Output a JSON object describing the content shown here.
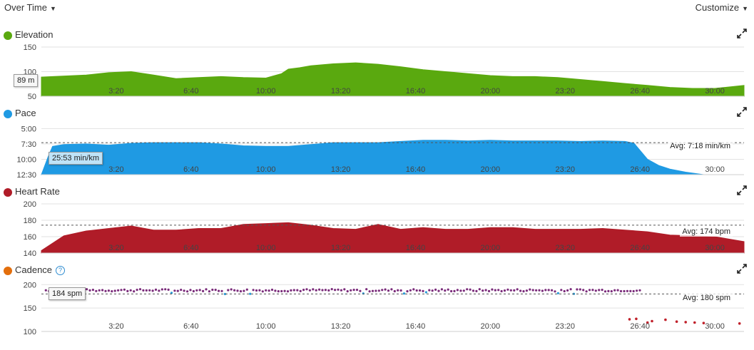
{
  "toolbar": {
    "view_label": "Over Time",
    "customize_label": "Customize"
  },
  "x_ticks": [
    "3:20",
    "6:40",
    "10:00",
    "13:20",
    "16:40",
    "20:00",
    "23:20",
    "26:40",
    "30:00"
  ],
  "chart_data": [
    {
      "type": "area",
      "title": "Elevation",
      "color": "#5aa90f",
      "ylim": [
        50,
        150
      ],
      "yticks": [
        150,
        100,
        50
      ],
      "xlim": [
        0,
        31.3
      ],
      "x": [
        0,
        2,
        3,
        4,
        5,
        6,
        7,
        8,
        9,
        10,
        10.7,
        11,
        11.5,
        12,
        13,
        14,
        15,
        16,
        17,
        18,
        19,
        20,
        21,
        22,
        23,
        24,
        25,
        26,
        27,
        28,
        29,
        30,
        31.3
      ],
      "values": [
        89,
        93,
        98,
        100,
        93,
        86,
        88,
        90,
        88,
        87,
        96,
        105,
        108,
        112,
        116,
        118,
        115,
        110,
        104,
        100,
        96,
        92,
        90,
        90,
        88,
        84,
        80,
        76,
        72,
        68,
        66,
        66,
        72
      ],
      "callout": "89 m"
    },
    {
      "type": "area",
      "title": "Pace",
      "color": "#1f9ae3",
      "ylim_reversed": true,
      "ylim": [
        12.5,
        4.5
      ],
      "ytick_labels": [
        "5:00",
        "7:30",
        "10:00",
        "12:30"
      ],
      "ytick_values": [
        5,
        7.5,
        10,
        12.5
      ],
      "xlim": [
        0,
        31.3
      ],
      "x": [
        0,
        0.3,
        0.5,
        1,
        2,
        3,
        4,
        5,
        6,
        7,
        8,
        9,
        10,
        11,
        12,
        13,
        14,
        15,
        16,
        17,
        18,
        19,
        20,
        21,
        22,
        23,
        24,
        25,
        26,
        26.4,
        27,
        27.5,
        28,
        28.7,
        29.5
      ],
      "values": [
        12.5,
        9.6,
        7.9,
        7.6,
        7.5,
        7.7,
        7.4,
        7.3,
        7.3,
        7.3,
        7.5,
        7.8,
        7.9,
        7.9,
        7.6,
        7.3,
        7.3,
        7.3,
        7.1,
        6.9,
        6.9,
        7.0,
        6.9,
        7.0,
        7.0,
        7.0,
        7.1,
        7.0,
        7.1,
        7.4,
        10.0,
        11.0,
        11.6,
        12.1,
        12.5
      ],
      "avg_value": 7.3,
      "avg_label": "Avg: 7:18 min/km",
      "callout": "25:53 min/km"
    },
    {
      "type": "area",
      "title": "Heart Rate",
      "color": "#b01c28",
      "ylim": [
        140,
        200
      ],
      "yticks": [
        200,
        180,
        160,
        140
      ],
      "xlim": [
        0,
        31.3
      ],
      "x": [
        0,
        1,
        2,
        3,
        4,
        5,
        6,
        7,
        8,
        9,
        10,
        11,
        12,
        13,
        14,
        15,
        16,
        17,
        18,
        19,
        20,
        21,
        22,
        23,
        24,
        25,
        26,
        27,
        28,
        29,
        30,
        31.3
      ],
      "values": [
        143,
        161,
        167,
        170,
        173,
        168,
        168,
        170,
        170,
        175,
        176,
        177,
        174,
        170,
        169,
        175,
        169,
        171,
        169,
        169,
        171,
        171,
        169,
        169,
        169,
        170,
        168,
        166,
        162,
        161,
        160,
        154
      ],
      "avg_value": 174,
      "avg_label": "Avg: 174 bpm"
    },
    {
      "type": "scatter",
      "title": "Cadence",
      "color": "#e36e0c",
      "dot_color": "#7a2b7a",
      "low_dot_color": "#c0202a",
      "ylim": [
        100,
        205
      ],
      "yticks": [
        200,
        150,
        100
      ],
      "xlim": [
        0,
        31.3
      ],
      "x_range": [
        0.2,
        26.7
      ],
      "base_value": 188,
      "low_x": [
        26.2,
        26.5,
        27,
        27.2,
        27.8,
        28.3,
        28.7,
        29.1,
        29.5,
        31.1
      ],
      "low_values": [
        126,
        127,
        119,
        122,
        125,
        121,
        120,
        119,
        118,
        117
      ],
      "avg_value": 180,
      "avg_label": "Avg: 180 spm",
      "callout": "184 spm"
    }
  ]
}
